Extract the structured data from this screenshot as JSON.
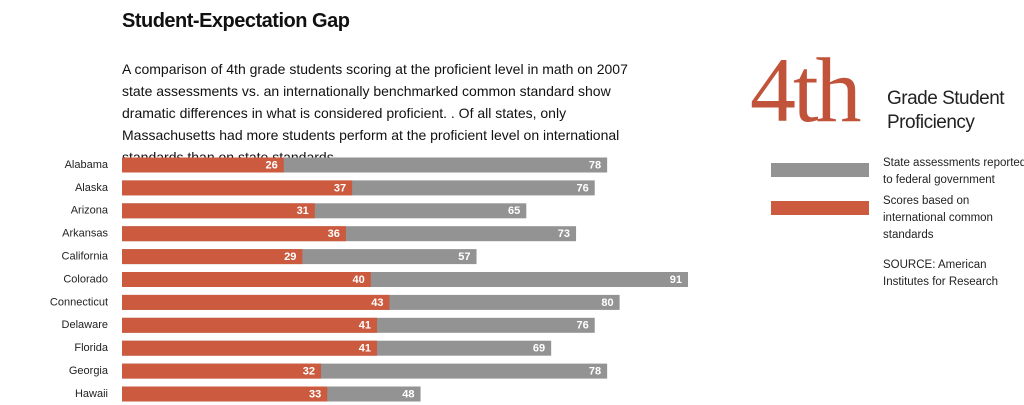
{
  "chart_data": {
    "type": "bar",
    "title": "Student-Expectation Gap",
    "subtitle": "A comparison of 4th grade students scoring at the proficient level in math on 2007 state assessments vs. an internationally benchmarked common standard show dramatic differences in what is considered proficient. . Of all states, only Massachusetts had more students perform at the proficient level on international standards than on state standards.",
    "badge": "4th",
    "badge_caption": [
      "Grade Student",
      "Proficiency"
    ],
    "source": "SOURCE: American Institutes for Research",
    "categories": [
      "Alabama",
      "Alaska",
      "Arizona",
      "Arkansas",
      "California",
      "Colorado",
      "Connecticut",
      "Delaware",
      "Florida",
      "Georgia",
      "Hawaii"
    ],
    "series": [
      {
        "name": "State assessments reported to federal government",
        "color": "#939393",
        "values": [
          78,
          76,
          65,
          73,
          57,
          91,
          80,
          76,
          69,
          78,
          48
        ]
      },
      {
        "name": "Scores based on international common standards",
        "color": "#cc5a3e",
        "values": [
          26,
          37,
          31,
          36,
          29,
          40,
          43,
          41,
          41,
          32,
          33
        ]
      }
    ],
    "xlim": [
      0,
      100
    ]
  }
}
